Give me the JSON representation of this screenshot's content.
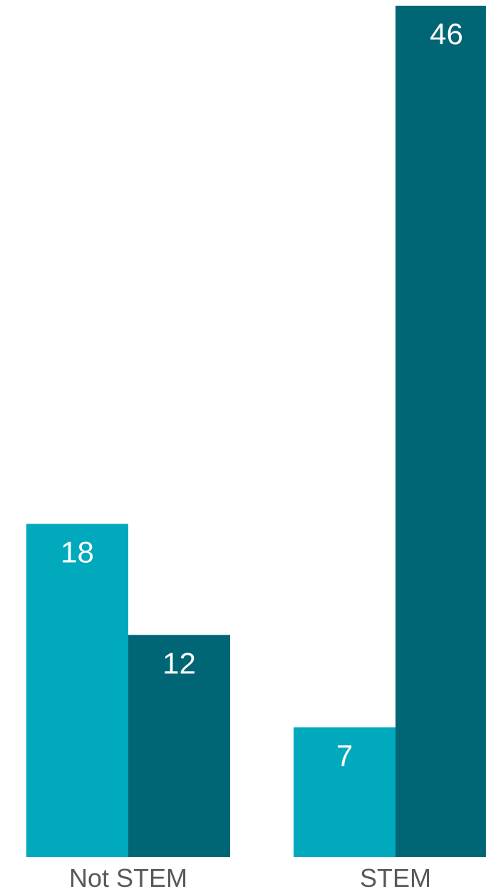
{
  "chart_data": {
    "type": "bar",
    "title": "",
    "xlabel": "",
    "ylabel": "",
    "categories": [
      "Not STEM",
      "STEM"
    ],
    "series": [
      {
        "color": "#00a9bc",
        "values": [
          18,
          7
        ]
      },
      {
        "color": "#006675",
        "values": [
          12,
          46
        ]
      }
    ],
    "ylim": [
      0,
      46
    ],
    "grid": false,
    "legend": "none",
    "data_labels": true
  }
}
